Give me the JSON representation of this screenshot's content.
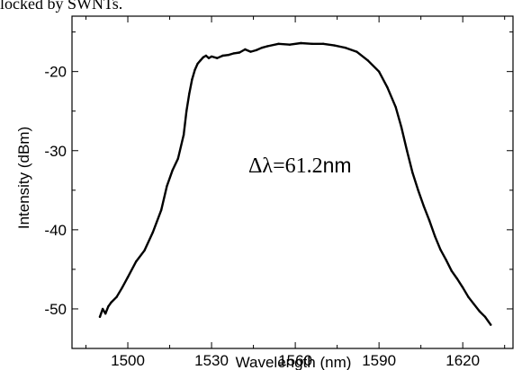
{
  "caption": "locked by SWNTs.",
  "chart_data": {
    "type": "line",
    "xlabel": "Wavelength (nm)",
    "ylabel": "Intensity (dBm)",
    "xlim": [
      1480,
      1638
    ],
    "ylim": [
      -55,
      -13
    ],
    "xticks": [
      1500,
      1530,
      1560,
      1590,
      1620
    ],
    "yticks": [
      -20,
      -30,
      -40,
      -50
    ],
    "grid": false,
    "annotation": {
      "prefix": "Δλ=61.2",
      "unit": "nm"
    },
    "series": [
      {
        "x": [
          1490,
          1491,
          1492,
          1493,
          1494,
          1496,
          1498,
          1500,
          1503,
          1506,
          1509,
          1512,
          1514,
          1516,
          1518,
          1520,
          1521,
          1522,
          1523,
          1524,
          1525,
          1526,
          1527,
          1528,
          1529,
          1530,
          1532,
          1534,
          1536,
          1538,
          1540,
          1542,
          1544,
          1546,
          1548,
          1550,
          1554,
          1558,
          1562,
          1566,
          1570,
          1574,
          1578,
          1582,
          1586,
          1590,
          1593,
          1596,
          1598,
          1600,
          1602,
          1604,
          1606,
          1608,
          1610,
          1612,
          1614,
          1616,
          1618,
          1620,
          1622,
          1624,
          1626,
          1628,
          1629,
          1630
        ],
        "values": [
          -51.0,
          -50.0,
          -50.6,
          -49.7,
          -49.2,
          -48.5,
          -47.3,
          -46.0,
          -44.0,
          -42.6,
          -40.3,
          -37.5,
          -34.5,
          -32.5,
          -31.0,
          -28.0,
          -25.0,
          -22.8,
          -21.0,
          -19.8,
          -19.0,
          -18.6,
          -18.2,
          -18.0,
          -18.3,
          -18.1,
          -18.3,
          -18.0,
          -17.9,
          -17.7,
          -17.6,
          -17.2,
          -17.5,
          -17.3,
          -17.0,
          -16.8,
          -16.5,
          -16.6,
          -16.4,
          -16.5,
          -16.5,
          -16.7,
          -17.0,
          -17.5,
          -18.6,
          -20.0,
          -22.0,
          -24.5,
          -27.0,
          -30.0,
          -32.8,
          -35.0,
          -37.0,
          -38.8,
          -40.8,
          -42.5,
          -43.8,
          -45.2,
          -46.2,
          -47.3,
          -48.5,
          -49.4,
          -50.3,
          -51.0,
          -51.5,
          -52.0
        ]
      }
    ]
  }
}
